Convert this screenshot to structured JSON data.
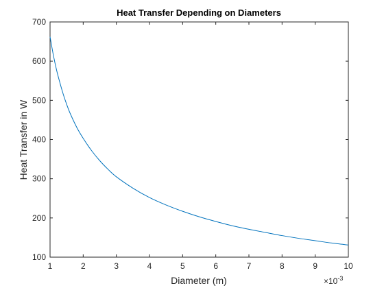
{
  "chart_data": {
    "type": "line",
    "title": "Heat Transfer Depending on Diameters",
    "xlabel": "Diameter (m)",
    "ylabel": "Heat Transfer in W",
    "x_exponent_label": "×10",
    "x_exponent_power": "-3",
    "xlim": [
      1,
      10
    ],
    "ylim": [
      100,
      700
    ],
    "xtick_labels": [
      "1",
      "2",
      "3",
      "4",
      "5",
      "6",
      "7",
      "8",
      "9",
      "10"
    ],
    "ytick_labels": [
      "100",
      "200",
      "300",
      "400",
      "500",
      "600",
      "700"
    ],
    "xticks": [
      1,
      2,
      3,
      4,
      5,
      6,
      7,
      8,
      9,
      10
    ],
    "yticks": [
      100,
      200,
      300,
      400,
      500,
      600,
      700
    ],
    "grid": false,
    "series": [
      {
        "color": "#0072BD",
        "x": [
          1.0,
          1.1,
          1.2,
          1.3,
          1.4,
          1.5,
          1.6,
          1.8,
          2.0,
          2.25,
          2.5,
          2.75,
          3.0,
          3.5,
          4.0,
          4.5,
          5.0,
          5.5,
          6.0,
          6.5,
          7.0,
          7.5,
          8.0,
          8.5,
          9.0,
          9.5,
          10.0
        ],
        "y": [
          662,
          615,
          576,
          544,
          515,
          490,
          468,
          432,
          403,
          372,
          346,
          324,
          305,
          276,
          252,
          233,
          217,
          203,
          191,
          180,
          171,
          163,
          155,
          148,
          142,
          136,
          131
        ]
      }
    ]
  }
}
